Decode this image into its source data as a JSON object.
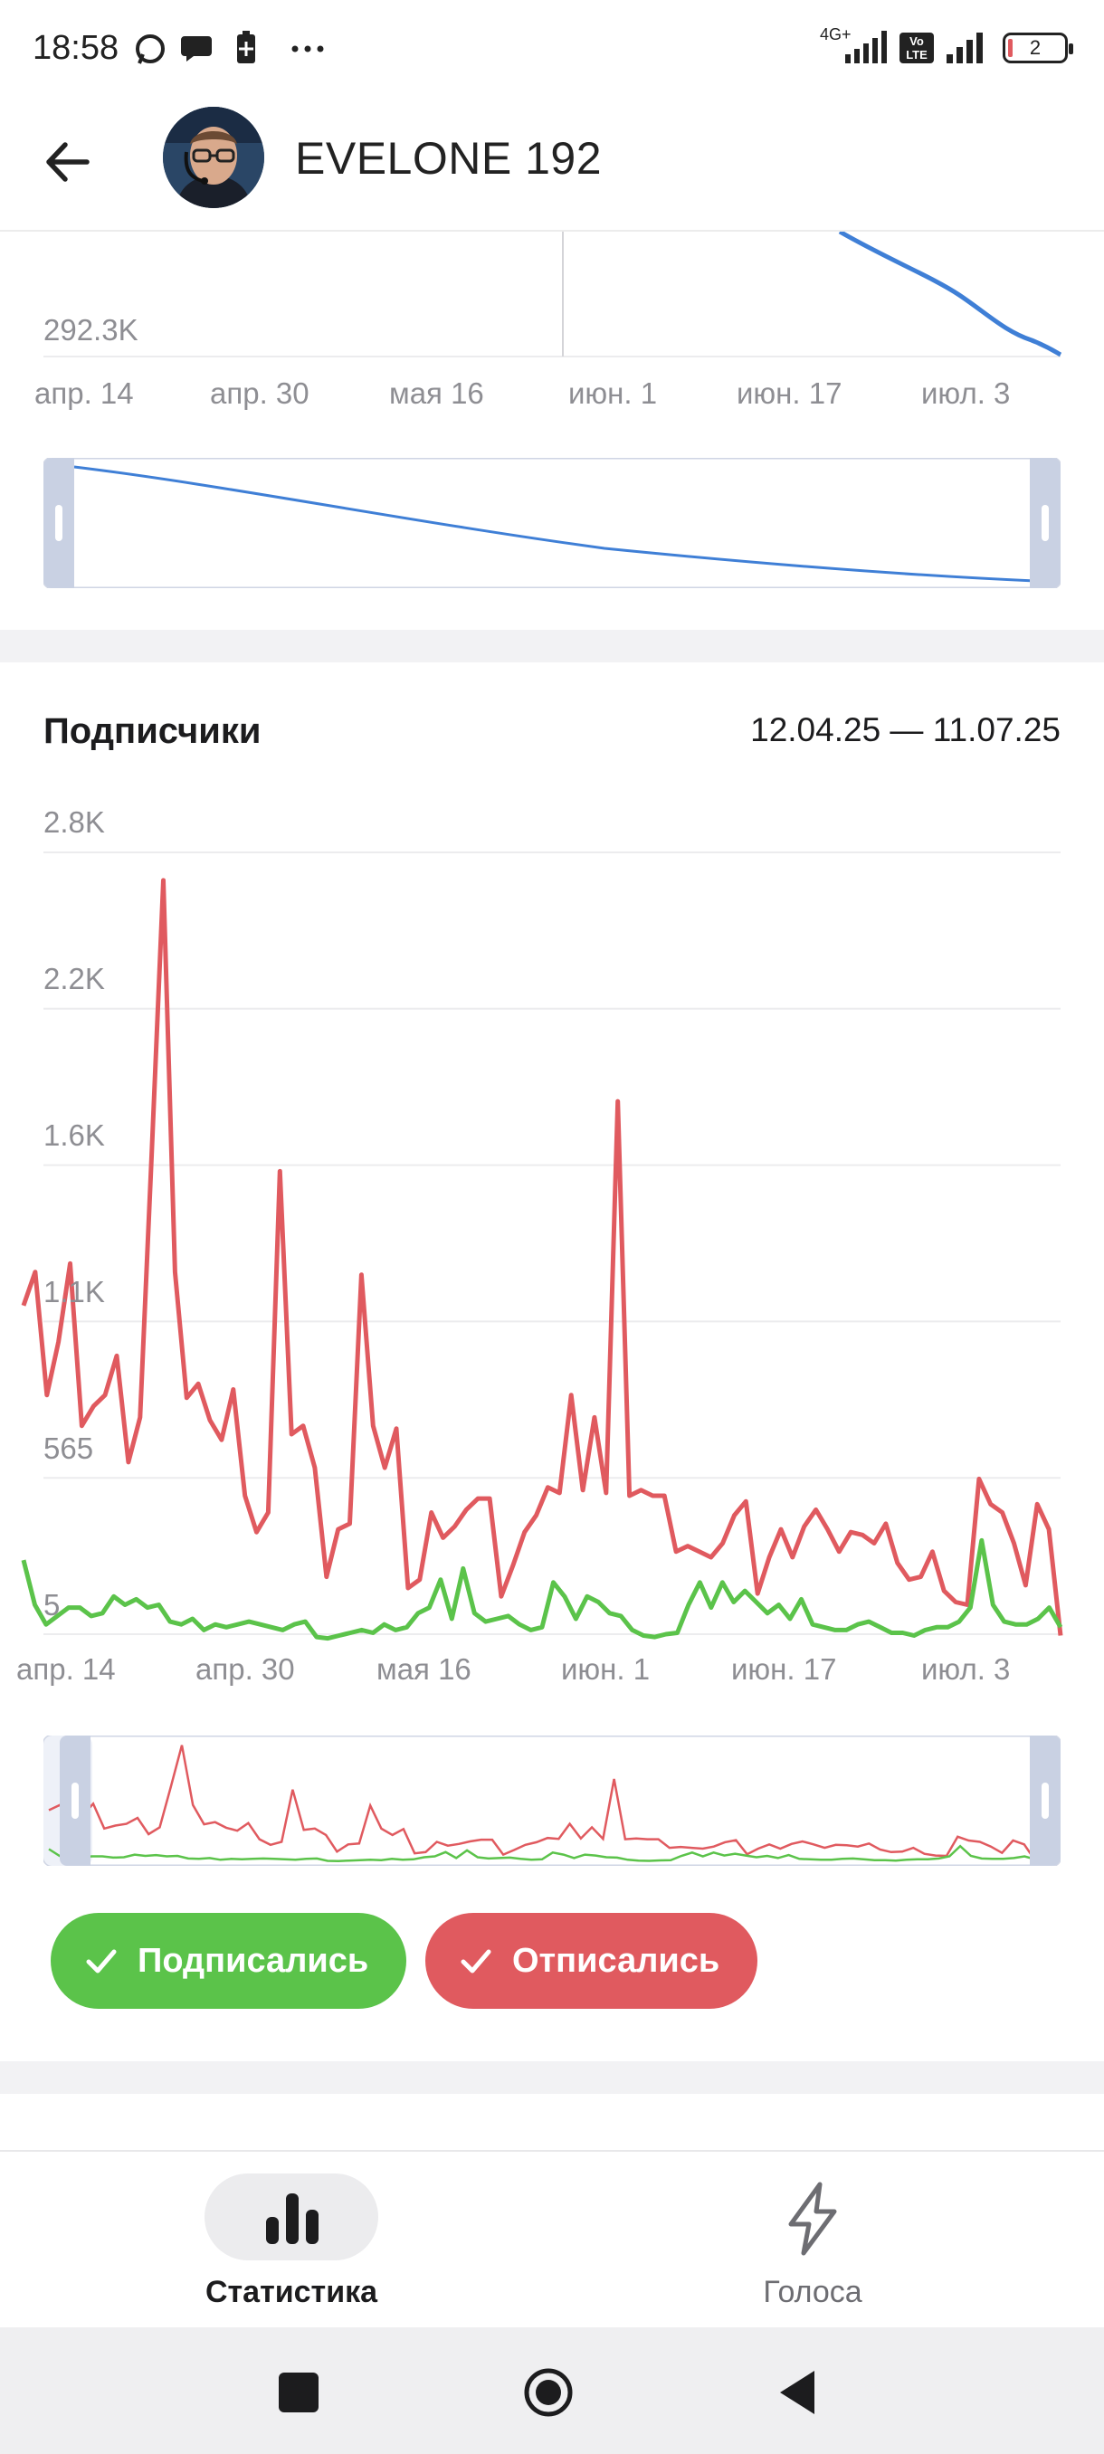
{
  "status_bar": {
    "time": "18:58",
    "network_label": "4G+",
    "volte_label": "Vo LTE",
    "battery": "2"
  },
  "header": {
    "title": "EVELONE 192"
  },
  "top_chart": {
    "y_label": "292.3K",
    "x_labels": [
      "апр. 14",
      "апр. 30",
      "мая 16",
      "июн. 1",
      "июн. 17",
      "июл. 3"
    ],
    "line_color": "#3f7fd6"
  },
  "subscribers": {
    "title": "Подписчики",
    "date_range": "12.04.25 — 11.07.25"
  },
  "chart_data": {
    "type": "line",
    "y_tick_labels": [
      "2.8K",
      "2.2K",
      "1.6K",
      "1.1K",
      "565",
      "5"
    ],
    "x_tick_labels": [
      "апр. 14",
      "апр. 30",
      "мая 16",
      "июн. 1",
      "июн. 17",
      "июл. 3"
    ],
    "ylim": [
      5,
      2800
    ],
    "series": [
      {
        "name": "Отписались",
        "color": "#e05a5f",
        "values": [
          1180,
          1300,
          860,
          1050,
          1330,
          750,
          820,
          860,
          1000,
          620,
          780,
          1720,
          2700,
          1300,
          850,
          900,
          770,
          700,
          880,
          500,
          370,
          440,
          1660,
          720,
          750,
          600,
          210,
          380,
          400,
          1290,
          750,
          600,
          740,
          170,
          200,
          440,
          350,
          390,
          450,
          490,
          490,
          140,
          250,
          370,
          430,
          530,
          510,
          860,
          520,
          780,
          510,
          1910,
          500,
          520,
          500,
          500,
          300,
          320,
          300,
          280,
          330,
          430,
          480,
          150,
          280,
          380,
          280,
          390,
          450,
          380,
          300,
          370,
          360,
          330,
          400,
          260,
          200,
          210,
          300,
          160,
          120,
          110,
          560,
          470,
          440,
          330,
          180,
          470,
          380,
          0
        ]
      },
      {
        "name": "Подписались",
        "color": "#5bc34a",
        "values": [
          270,
          110,
          40,
          70,
          100,
          100,
          70,
          80,
          140,
          110,
          130,
          100,
          110,
          50,
          40,
          60,
          20,
          40,
          30,
          40,
          50,
          40,
          30,
          20,
          40,
          50,
          -5,
          -10,
          0,
          10,
          20,
          10,
          40,
          20,
          30,
          80,
          100,
          200,
          60,
          240,
          80,
          50,
          60,
          70,
          40,
          20,
          30,
          190,
          140,
          60,
          140,
          120,
          80,
          70,
          20,
          0,
          -5,
          5,
          10,
          110,
          190,
          100,
          190,
          120,
          160,
          120,
          80,
          110,
          60,
          130,
          40,
          30,
          20,
          20,
          40,
          50,
          30,
          10,
          10,
          0,
          20,
          30,
          30,
          50,
          100,
          340,
          110,
          50,
          40,
          40,
          60,
          100,
          30
        ]
      }
    ]
  },
  "legend": {
    "subscribed_label": "Подписались",
    "subscribed_color": "#5bc34a",
    "unsubscribed_label": "Отписались",
    "unsubscribed_color": "#e05a5f"
  },
  "bottom_nav": {
    "items": [
      {
        "label": "Статистика",
        "icon": "bar-chart-icon",
        "active": true
      },
      {
        "label": "Голоса",
        "icon": "lightning-icon",
        "active": false
      }
    ]
  }
}
